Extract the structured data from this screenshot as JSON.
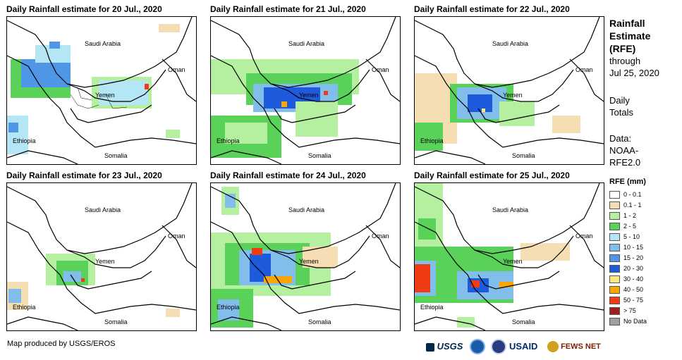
{
  "panels": [
    {
      "title": "Daily Rainfall estimate for 20 Jul., 2020"
    },
    {
      "title": "Daily Rainfall estimate for 21 Jul., 2020"
    },
    {
      "title": "Daily Rainfall estimate for 22 Jul., 2020"
    },
    {
      "title": "Daily Rainfall estimate for 23 Jul., 2020"
    },
    {
      "title": "Daily Rainfall estimate for 24 Jul., 2020"
    },
    {
      "title": "Daily Rainfall estimate for 25 Jul., 2020"
    }
  ],
  "map_labels": {
    "saudi": "Saudi Arabia",
    "oman": "Oman",
    "yemen": "Yemen",
    "ethiopia": "Ethiopia",
    "somalia": "Somalia"
  },
  "sidebar": {
    "title_line1": "Rainfall",
    "title_line2": "Estimate",
    "title_line3": "(RFE)",
    "through_label": "through",
    "through_date": "Jul 25, 2020",
    "daily_line1": "Daily",
    "daily_line2": "Totals",
    "data_line1": "Data:",
    "data_line2": "NOAA-",
    "data_line3": "RFE2.0"
  },
  "legend": {
    "title": "RFE (mm)",
    "items": [
      {
        "label": "0 - 0.1",
        "color": "#ffffff"
      },
      {
        "label": "0.1 - 1",
        "color": "#f5deb3"
      },
      {
        "label": "1 - 2",
        "color": "#b4f0a0"
      },
      {
        "label": "2 - 5",
        "color": "#5ad25a"
      },
      {
        "label": "5 - 10",
        "color": "#b4e6f5"
      },
      {
        "label": "10 - 15",
        "color": "#82beeb"
      },
      {
        "label": "15 - 20",
        "color": "#5096e6"
      },
      {
        "label": "20 - 30",
        "color": "#1e5adc"
      },
      {
        "label": "30 - 40",
        "color": "#fae682"
      },
      {
        "label": "40 - 50",
        "color": "#faa500"
      },
      {
        "label": "50 - 75",
        "color": "#f03c14"
      },
      {
        "label": "> 75",
        "color": "#a01e1e"
      },
      {
        "label": "No Data",
        "color": "#a0a0a0"
      }
    ]
  },
  "footer": {
    "credit": "Map produced by USGS/EROS",
    "logo_usgs": "USGS",
    "logo_usaid": "USAID",
    "logo_fews": "FEWS NET"
  }
}
